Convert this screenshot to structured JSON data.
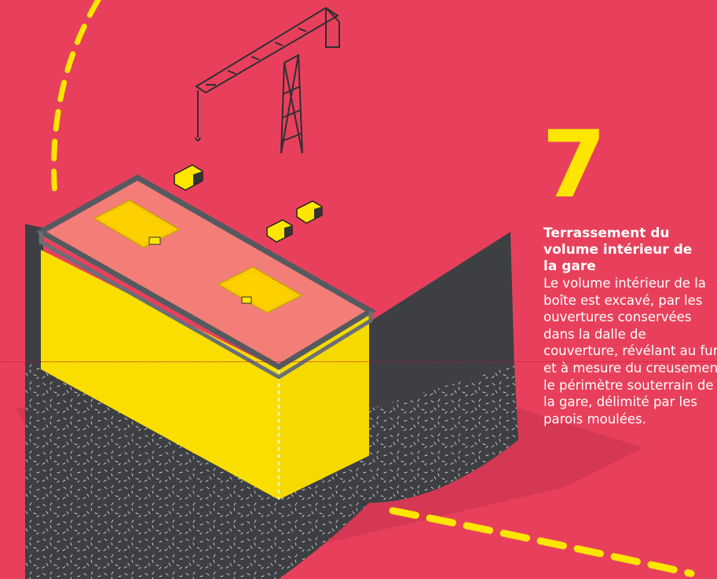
{
  "step": {
    "number": "7",
    "title": "Terrassement du volume intérieur de la gare",
    "body": "Le volume intérieur de la boîte est excavé, par les ouvertures conservées dans la dalle de couverture, révélant au fur et à mesure du creusement le périmètre souterrain de la gare, délimité par les parois moulées."
  },
  "colors": {
    "background": "#e8405c",
    "accent_yellow": "#ffe600",
    "dark_wall": "#3d3f42",
    "ground_shadow": "#c8304c"
  }
}
